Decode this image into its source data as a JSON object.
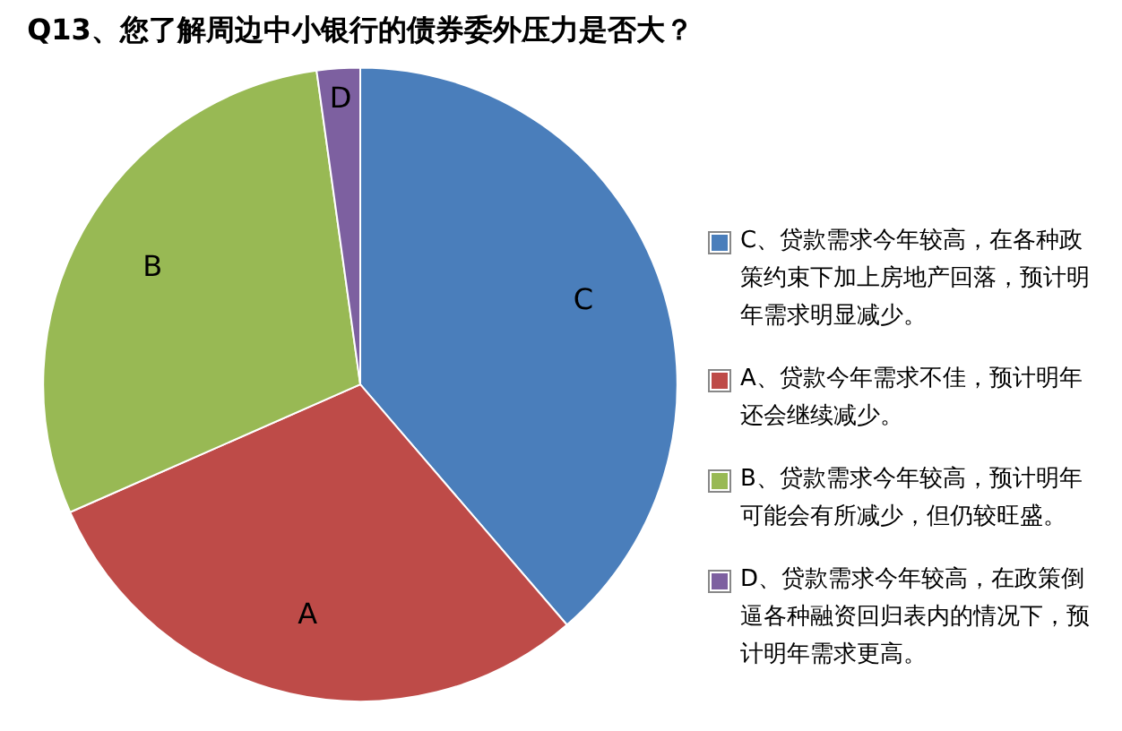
{
  "chart_data": {
    "type": "pie",
    "title": "Q13、您了解周边中小银行的债券委外压力是否大？",
    "categories": [
      "C、贷款需求今年较高，在各种政策约束下加上房地产回落，预计明年需求明显减少。",
      "A、贷款今年需求不佳，预计明年还会继续减少。",
      "B、贷款需求今年较高，预计明年可能会有所减少，但仍较旺盛。",
      "D、贷款需求今年较高，在政策倒逼各种融资回归表内的情况下，预计明年需求更高。"
    ],
    "values": [
      38.7,
      29.7,
      29.4,
      2.2
    ],
    "colors": [
      "#4a7ebb",
      "#be4b48",
      "#98b954",
      "#7d60a0"
    ],
    "legend": "right",
    "annotations": [
      "C",
      "A",
      "B",
      "D"
    ]
  }
}
